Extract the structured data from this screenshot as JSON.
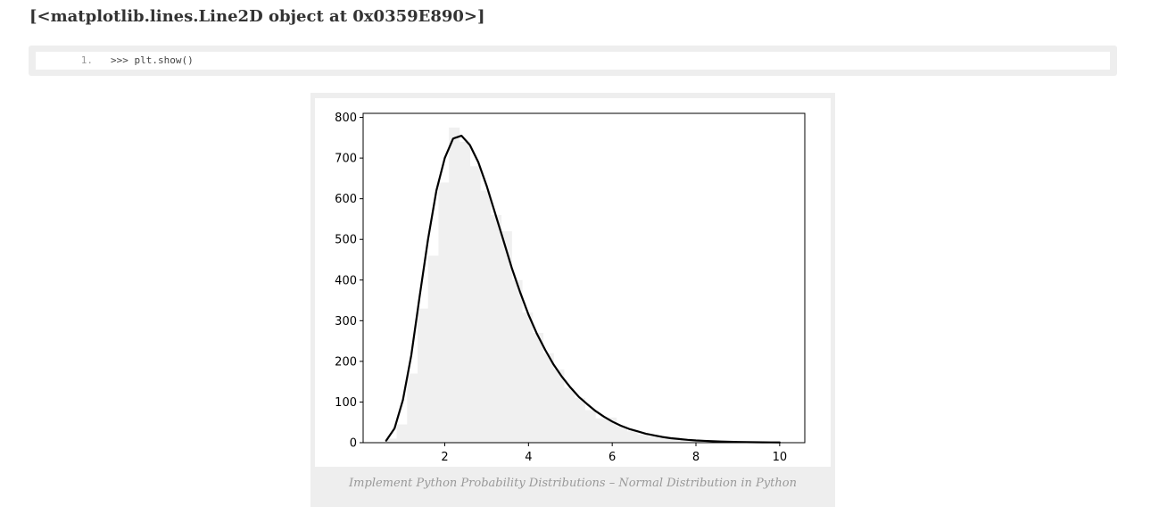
{
  "page": {
    "output_text": "[<matplotlib.lines.Line2D object at 0x0359E890>]"
  },
  "code_block": {
    "line_number": "1.",
    "code": ">>> plt.show()"
  },
  "figure": {
    "caption": "Implement Python Probability Distributions – Normal Distribution in Python"
  },
  "colors": {
    "histogram_fill": "#f0f0f0",
    "curve": "#000000",
    "axes": "#000000"
  },
  "chart_data": {
    "type": "area",
    "title": "",
    "xlabel": "",
    "ylabel": "",
    "xlim": [
      0.05,
      10.6
    ],
    "ylim": [
      0,
      810
    ],
    "xticks": [
      2,
      4,
      6,
      8,
      10
    ],
    "yticks": [
      0,
      100,
      200,
      300,
      400,
      500,
      600,
      700,
      800
    ],
    "grid": false,
    "histogram": {
      "bin_width": 0.25,
      "bin_starts": [
        0.6,
        0.85,
        1.1,
        1.35,
        1.6,
        1.85,
        2.1,
        2.35,
        2.6,
        2.85,
        3.1,
        3.35,
        3.6,
        3.85,
        4.1,
        4.35,
        4.6,
        4.85,
        5.1,
        5.35,
        5.6,
        5.85,
        6.1,
        6.35,
        6.6,
        6.85,
        7.1,
        7.35,
        7.6,
        7.85,
        8.1,
        8.35,
        8.6,
        8.85,
        9.1,
        9.35,
        9.6
      ],
      "counts": [
        10,
        45,
        170,
        330,
        460,
        640,
        775,
        740,
        680,
        620,
        560,
        520,
        400,
        320,
        270,
        220,
        180,
        135,
        110,
        80,
        60,
        62,
        40,
        28,
        20,
        15,
        11,
        9,
        7,
        5,
        4,
        3,
        3,
        2,
        2,
        2,
        2
      ]
    },
    "series": [
      {
        "x": [
          0.6,
          0.8,
          1.0,
          1.2,
          1.4,
          1.6,
          1.8,
          2.0,
          2.2,
          2.4,
          2.6,
          2.8,
          3.0,
          3.2,
          3.4,
          3.6,
          3.8,
          4.0,
          4.2,
          4.4,
          4.6,
          4.8,
          5.0,
          5.2,
          5.4,
          5.6,
          5.8,
          6.0,
          6.2,
          6.4,
          6.6,
          6.8,
          7.0,
          7.2,
          7.4,
          7.6,
          7.8,
          8.0,
          8.2,
          8.4,
          8.6,
          8.8,
          9.0,
          9.2,
          9.4,
          9.6,
          9.8,
          10.0
        ],
        "y": [
          5,
          35,
          105,
          215,
          360,
          500,
          620,
          700,
          748,
          755,
          732,
          690,
          632,
          565,
          498,
          430,
          370,
          315,
          268,
          228,
          192,
          162,
          136,
          113,
          95,
          78,
          64,
          52,
          42,
          34,
          28,
          22,
          18,
          14,
          11,
          9,
          7,
          5.5,
          4.5,
          3.6,
          2.9,
          2.3,
          1.8,
          1.4,
          1.1,
          0.9,
          0.7,
          0.5
        ]
      }
    ]
  }
}
